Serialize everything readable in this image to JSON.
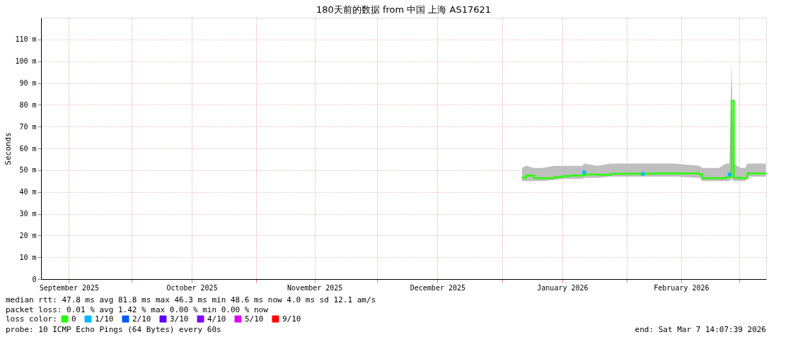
{
  "chart_data": {
    "type": "line",
    "title": "180天前的数据 from 中国 上海 AS17621",
    "ylabel": "Seconds",
    "xlim": [
      "2025-09-08T14:07",
      "2026-03-07T14:07"
    ],
    "xticks": [
      {
        "value": "2025-09-15T12:00",
        "label": "September 2025"
      },
      {
        "value": "2025-10-01",
        "label": null
      },
      {
        "value": "2025-10-16",
        "label": "October 2025"
      },
      {
        "value": "2025-11-01",
        "label": null
      },
      {
        "value": "2025-11-15T12:00",
        "label": "November 2025"
      },
      {
        "value": "2025-12-01",
        "label": null
      },
      {
        "value": "2025-12-16",
        "label": "December 2025"
      },
      {
        "value": "2026-01-01",
        "label": null
      },
      {
        "value": "2026-01-16",
        "label": "January 2026"
      },
      {
        "value": "2026-02-01",
        "label": null
      },
      {
        "value": "2026-02-14T12:00",
        "label": "February 2026"
      },
      {
        "value": "2026-03-01",
        "label": null
      }
    ],
    "ylim": [
      0,
      120
    ],
    "yticks": [
      0,
      {
        "value": 10,
        "label": "10 m"
      },
      {
        "value": 20,
        "label": "20 m"
      },
      {
        "value": 30,
        "label": "30 m"
      },
      {
        "value": 40,
        "label": "40 m"
      },
      {
        "value": 50,
        "label": "50 m"
      },
      {
        "value": 60,
        "label": "60 m"
      },
      {
        "value": 70,
        "label": "70 m"
      },
      {
        "value": 80,
        "label": "80 m"
      },
      {
        "value": 90,
        "label": "90 m"
      },
      {
        "value": 100,
        "label": "100 m"
      },
      {
        "value": 110,
        "label": "110 m"
      }
    ],
    "x": [
      "2026-01-06",
      "2026-01-07",
      "2026-01-09",
      "2026-01-11",
      "2026-01-14",
      "2026-01-16",
      "2026-01-18",
      "2026-01-21",
      "2026-01-21T10:00",
      "2026-01-24T17:00",
      "2026-01-28",
      "2026-02-02",
      "2026-02-07",
      "2026-02-13",
      "2026-02-19T02:00",
      "2026-02-19T19:00",
      "2026-02-23T21:00",
      "2026-02-25T15:00",
      "2026-02-26T12:00",
      "2026-02-27",
      "2026-02-27T14:00",
      "2026-03-01T05:00",
      "2026-03-02T10:00",
      "2026-03-02T22:00",
      "2026-03-05T14:00",
      "2026-03-07T12:00"
    ],
    "series": [
      {
        "name": "0",
        "color": "#26ff00",
        "values": [
          46.5,
          47.5,
          46.3,
          46.3,
          46.8,
          47.3,
          47.5,
          47.5,
          48.0,
          47.8,
          48.3,
          48.3,
          48.5,
          48.5,
          48.0,
          46.3,
          46.3,
          46.8,
          47.0,
          81.8,
          46.5,
          46.3,
          46.3,
          48.5,
          48.5,
          48.6
        ],
        "lower": [
          45,
          45,
          45,
          45,
          45.5,
          46,
          46,
          46,
          46.5,
          46.5,
          47,
          47,
          47,
          47,
          46.5,
          45,
          45,
          45,
          45,
          46,
          45,
          45,
          45,
          47,
          47,
          47
        ],
        "upper": [
          51,
          52,
          51,
          51,
          52,
          52,
          52,
          52,
          53,
          52,
          53,
          53,
          53,
          53,
          52,
          51,
          51,
          53,
          53,
          99,
          53,
          51,
          51,
          53,
          53,
          53
        ]
      },
      {
        "name": "1/10",
        "color": "#00b8ff",
        "type": "scatter",
        "x": [
          "2026-01-21T10:00",
          "2026-02-05",
          "2026-02-26T12:00"
        ],
        "values": [
          49.0,
          48.3,
          48.0
        ]
      },
      {
        "name": "2/10",
        "color": "#0059ff",
        "values": [
          null,
          null,
          null,
          null,
          null,
          null,
          null,
          null,
          null,
          null,
          null,
          null,
          null,
          null,
          null,
          null,
          null,
          null,
          null,
          null,
          null,
          null,
          null,
          null,
          null,
          null
        ]
      },
      {
        "name": "3/10",
        "color": "#5e00ff",
        "values": [
          null,
          null,
          null,
          null,
          null,
          null,
          null,
          null,
          null,
          null,
          null,
          null,
          null,
          null,
          null,
          null,
          null,
          null,
          null,
          null,
          null,
          null,
          null,
          null,
          null,
          null
        ]
      },
      {
        "name": "4/10",
        "color": "#7e00ff",
        "values": [
          null,
          null,
          null,
          null,
          null,
          null,
          null,
          null,
          null,
          null,
          null,
          null,
          null,
          null,
          null,
          null,
          null,
          null,
          null,
          null,
          null,
          null,
          null,
          null,
          null,
          null
        ]
      },
      {
        "name": "5/10",
        "color": "#dd00ff",
        "values": [
          null,
          null,
          null,
          null,
          null,
          null,
          null,
          null,
          null,
          null,
          null,
          null,
          null,
          null,
          null,
          null,
          null,
          null,
          null,
          null,
          null,
          null,
          null,
          null,
          null,
          null
        ]
      },
      {
        "name": "9/10",
        "color": "#ff0000",
        "values": [
          null,
          null,
          null,
          null,
          null,
          null,
          null,
          null,
          null,
          null,
          null,
          null,
          null,
          null,
          null,
          null,
          null,
          null,
          null,
          null,
          null,
          null,
          null,
          null,
          null,
          null
        ]
      }
    ],
    "legend_title": "loss color:",
    "legend": "bottom left",
    "grid": true,
    "annotations": [
      "median rtt:  47.8 ms avg  81.8 ms max  46.3 ms min  48.6 ms now  4.0 ms sd  12.1   am/s",
      "packet loss: 0.01 % avg  1.42 % max  0.00 % min  0.00 % now",
      "probe:       10 ICMP Echo Pings (64 Bytes) every 60s",
      "end: Sat Mar  7 14:07:39 2026"
    ]
  }
}
